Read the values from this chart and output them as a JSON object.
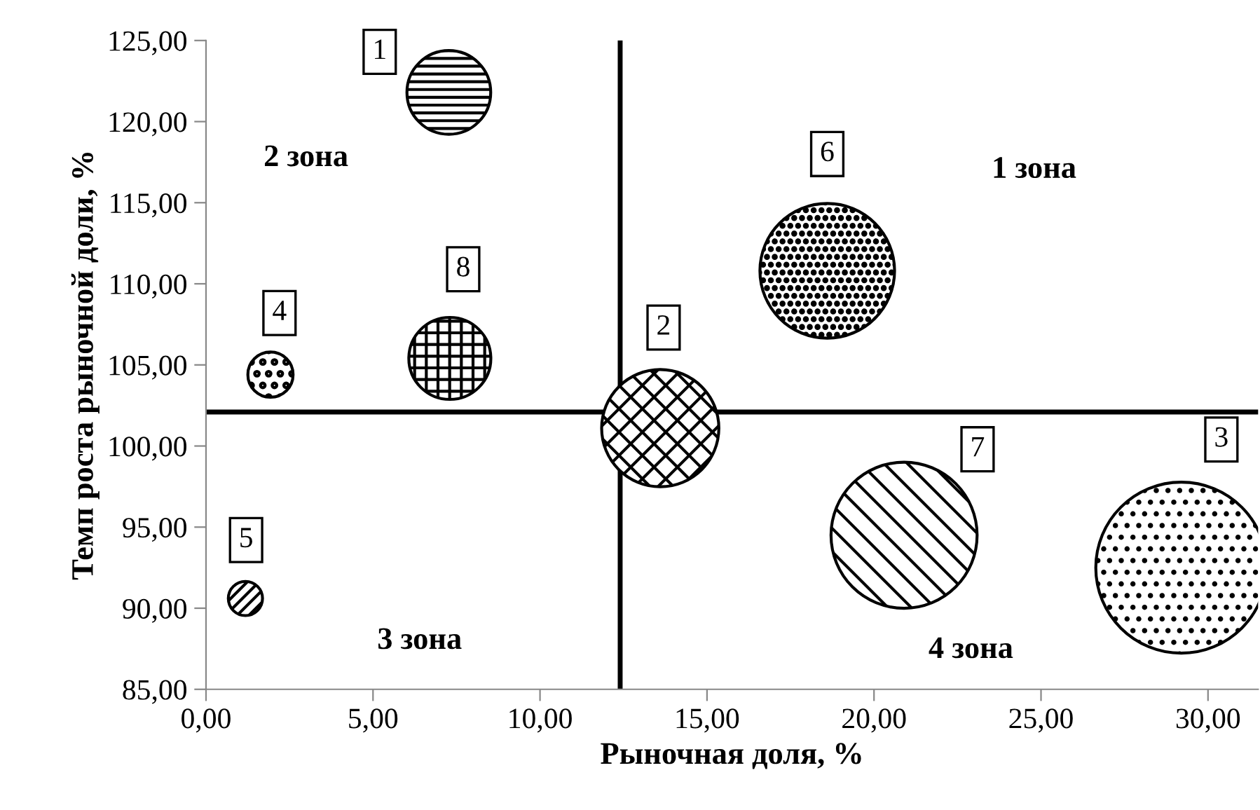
{
  "chart_data": {
    "type": "bubble",
    "xlabel": "Рыночная доля, %",
    "ylabel": "Темп роста рыночной доли, %",
    "series": [
      {
        "color": "#000000",
        "x": [
          7.27,
          13.6,
          29.2,
          1.93,
          1.18,
          18.6,
          20.9,
          7.3
        ],
        "values": [
          121.8,
          101.1,
          92.5,
          104.4,
          90.6,
          110.8,
          94.5,
          105.4
        ],
        "sizes": [
          0.24,
          0.47,
          1,
          0.07,
          0.04,
          0.62,
          0.73,
          0.23
        ]
      }
    ],
    "xlim": [
      0,
      31.5
    ],
    "ylim": [
      85,
      125
    ],
    "xticks": [
      {
        "value": 0,
        "label": "0,00"
      },
      {
        "value": 5,
        "label": "5,00"
      },
      {
        "value": 10,
        "label": "10,00"
      },
      {
        "value": 15,
        "label": "15,00"
      },
      {
        "value": 20,
        "label": "20,00"
      },
      {
        "value": 25,
        "label": "25,00"
      },
      {
        "value": 30,
        "label": "30,00"
      }
    ],
    "yticks": [
      {
        "value": 85,
        "label": "85,00"
      },
      {
        "value": 90,
        "label": "90,00"
      },
      {
        "value": 95,
        "label": "95,00"
      },
      {
        "value": 100,
        "label": "100,00"
      },
      {
        "value": 105,
        "label": "105,00"
      },
      {
        "value": 110,
        "label": "110,00"
      },
      {
        "value": 115,
        "label": "115,00"
      },
      {
        "value": 120,
        "label": "120,00"
      },
      {
        "value": 125,
        "label": "125,00"
      }
    ],
    "ref_lines": [
      {
        "axis": "x",
        "value": 12.4,
        "color": "#000000"
      },
      {
        "axis": "y",
        "value": 102.1,
        "color": "#000000"
      }
    ],
    "annotations": [
      {
        "text": "1",
        "x": 5.2,
        "y": 124.3
      },
      {
        "text": "2",
        "x": 13.7,
        "y": 107.3
      },
      {
        "text": "3",
        "x": 30.4,
        "y": 100.4
      },
      {
        "text": "4",
        "x": 2.2,
        "y": 108.2
      },
      {
        "text": "5",
        "x": 1.2,
        "y": 94.2
      },
      {
        "text": "6",
        "x": 18.6,
        "y": 118.0
      },
      {
        "text": "7",
        "x": 23.1,
        "y": 99.8
      },
      {
        "text": "8",
        "x": 7.7,
        "y": 110.9
      },
      "1 зона",
      "2 зона",
      "3 зона",
      "4 зона"
    ],
    "grid": false,
    "legend": false
  }
}
